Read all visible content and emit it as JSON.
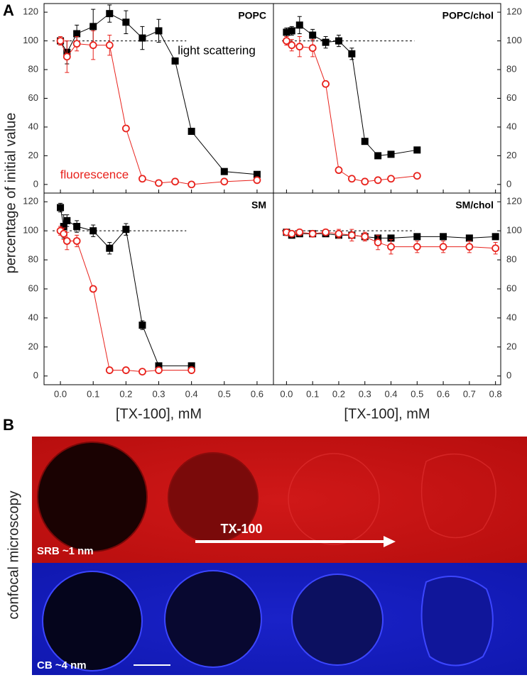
{
  "figure": {
    "panel_a_label": "A",
    "panel_b_label": "B"
  },
  "microscopy": {
    "side_label": "confocal microscopy",
    "top_label": "SRB ~1 nm",
    "arrow_label": "TX-100",
    "bottom_label": "CB ~4 nm"
  },
  "chart_data": [
    {
      "type": "line",
      "title": "POPC",
      "y_label": "percentage of initial value",
      "y_axis_side": "left",
      "ref_line": 100,
      "xlim": [
        -0.05,
        0.65
      ],
      "ylim": [
        -6,
        126
      ],
      "xticks": [
        0,
        0.1,
        0.2,
        0.3,
        0.4,
        0.5,
        0.6
      ],
      "yticks": [
        0,
        20,
        40,
        60,
        80,
        100,
        120
      ],
      "series": [
        {
          "name": "light scattering",
          "color": "#000000",
          "marker": "square",
          "x": [
            0,
            0.02,
            0.05,
            0.1,
            0.15,
            0.2,
            0.25,
            0.3,
            0.35,
            0.4,
            0.5,
            0.6
          ],
          "values": [
            100,
            92,
            105,
            110,
            119,
            113,
            102,
            107,
            86,
            37,
            9,
            7
          ],
          "errors": [
            2,
            8,
            6,
            12,
            6,
            8,
            8,
            8,
            2,
            2,
            2,
            2
          ]
        },
        {
          "name": "fluorescence",
          "color": "#e8221c",
          "marker": "circle",
          "x": [
            0,
            0.02,
            0.05,
            0.1,
            0.15,
            0.2,
            0.25,
            0.3,
            0.35,
            0.4,
            0.5,
            0.6
          ],
          "values": [
            100,
            89,
            98,
            97,
            97,
            39,
            4,
            1,
            2,
            0,
            2,
            3
          ],
          "errors": [
            3,
            11,
            5,
            10,
            7,
            2,
            2,
            2,
            2,
            2,
            2,
            2
          ]
        }
      ]
    },
    {
      "type": "line",
      "title": "POPC/chol",
      "y_axis_side": "right",
      "ref_line": 100,
      "xlim": [
        -0.05,
        0.82
      ],
      "ylim": [
        -6,
        126
      ],
      "xticks": [
        0,
        0.1,
        0.2,
        0.3,
        0.4,
        0.5,
        0.6,
        0.7,
        0.8
      ],
      "yticks": [
        0,
        20,
        40,
        60,
        80,
        100,
        120
      ],
      "series": [
        {
          "color": "#000000",
          "marker": "square",
          "x": [
            0,
            0.02,
            0.05,
            0.1,
            0.15,
            0.2,
            0.25,
            0.3,
            0.35,
            0.4,
            0.5
          ],
          "values": [
            106,
            107,
            111,
            104,
            99,
            100,
            91,
            30,
            20,
            21,
            24
          ],
          "errors": [
            3,
            3,
            6,
            4,
            4,
            4,
            4,
            2,
            2,
            2,
            2
          ]
        },
        {
          "color": "#e8221c",
          "marker": "circle",
          "x": [
            0,
            0.02,
            0.05,
            0.1,
            0.15,
            0.2,
            0.25,
            0.3,
            0.35,
            0.4,
            0.5
          ],
          "values": [
            100,
            97,
            96,
            95,
            70,
            10,
            4,
            2,
            3,
            4,
            6
          ],
          "errors": [
            3,
            4,
            7,
            6,
            2,
            2,
            2,
            2,
            2,
            2,
            2
          ]
        }
      ]
    },
    {
      "type": "line",
      "title": "SM",
      "y_axis_side": "left",
      "x_label": "[TX-100], mM",
      "ref_line": 100,
      "xlim": [
        -0.05,
        0.65
      ],
      "ylim": [
        -6,
        126
      ],
      "xticks": [
        {
          "value": 0,
          "label": "0.0"
        },
        0.1,
        0.2,
        0.3,
        0.4,
        0.5,
        0.6
      ],
      "yticks": [
        0,
        20,
        40,
        60,
        80,
        100,
        120
      ],
      "series": [
        {
          "color": "#000000",
          "marker": "square",
          "x": [
            0,
            0.01,
            0.02,
            0.05,
            0.1,
            0.15,
            0.2,
            0.25,
            0.3,
            0.4
          ],
          "values": [
            116,
            103,
            107,
            103,
            100,
            88,
            101,
            35,
            7,
            7
          ],
          "errors": [
            3,
            8,
            4,
            4,
            4,
            4,
            4,
            3,
            2,
            2
          ]
        },
        {
          "color": "#e8221c",
          "marker": "circle",
          "x": [
            0,
            0.01,
            0.02,
            0.05,
            0.1,
            0.15,
            0.2,
            0.25,
            0.3,
            0.4
          ],
          "values": [
            100,
            98,
            93,
            93,
            60,
            4,
            4,
            3,
            4,
            4
          ],
          "errors": [
            3,
            4,
            6,
            4,
            2,
            2,
            2,
            2,
            2,
            2
          ]
        }
      ]
    },
    {
      "type": "line",
      "title": "SM/chol",
      "y_axis_side": "right",
      "x_label": "[TX-100], mM",
      "ref_line": 100,
      "xlim": [
        -0.05,
        0.82
      ],
      "ylim": [
        -6,
        126
      ],
      "xticks": [
        {
          "value": 0,
          "label": "0.0"
        },
        0.1,
        0.2,
        0.3,
        0.4,
        0.5,
        0.6,
        0.7,
        0.8
      ],
      "yticks": [
        0,
        20,
        40,
        60,
        80,
        100,
        120
      ],
      "series": [
        {
          "color": "#000000",
          "marker": "square",
          "x": [
            0,
            0.02,
            0.05,
            0.1,
            0.15,
            0.2,
            0.25,
            0.3,
            0.35,
            0.4,
            0.5,
            0.6,
            0.7,
            0.8
          ],
          "values": [
            99,
            97,
            98,
            98,
            98,
            97,
            97,
            96,
            95,
            95,
            96,
            96,
            95,
            96
          ],
          "errors": [
            2,
            2,
            2,
            2,
            2,
            2,
            2,
            2,
            2,
            2,
            2,
            2,
            2,
            2
          ]
        },
        {
          "color": "#e8221c",
          "marker": "circle",
          "x": [
            0,
            0.02,
            0.05,
            0.1,
            0.15,
            0.2,
            0.25,
            0.3,
            0.35,
            0.4,
            0.5,
            0.6,
            0.7,
            0.8
          ],
          "values": [
            99,
            98,
            99,
            98,
            99,
            98,
            97,
            96,
            92,
            89,
            89,
            89,
            89,
            88
          ],
          "errors": [
            2,
            2,
            2,
            2,
            2,
            3,
            4,
            3,
            5,
            5,
            4,
            4,
            4,
            4
          ]
        }
      ]
    }
  ]
}
